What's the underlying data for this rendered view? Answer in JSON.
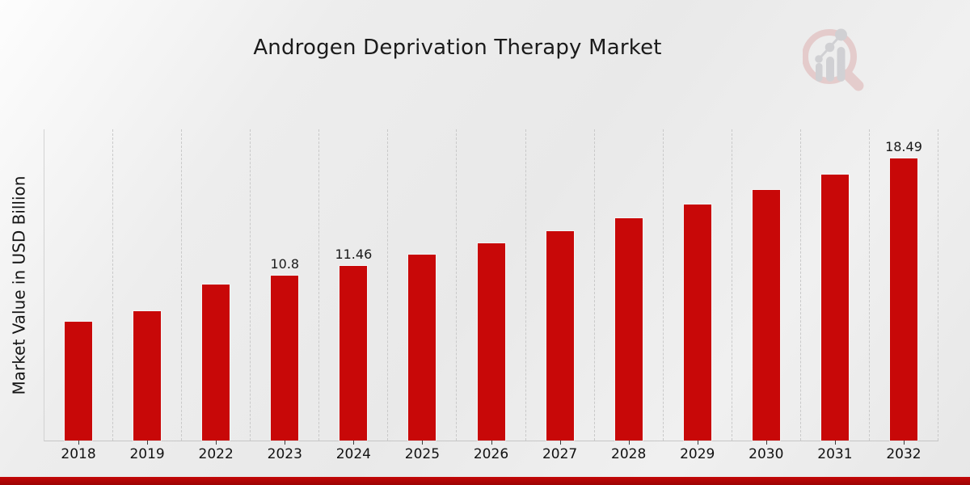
{
  "chart_data": {
    "type": "bar",
    "title": "Androgen Deprivation Therapy Market",
    "xlabel": "",
    "ylabel": "Market Value in USD Billion",
    "categories": [
      "2018",
      "2019",
      "2022",
      "2023",
      "2024",
      "2025",
      "2026",
      "2027",
      "2028",
      "2029",
      "2030",
      "2031",
      "2032"
    ],
    "values": [
      7.8,
      8.5,
      10.2,
      10.8,
      11.46,
      12.17,
      12.92,
      13.71,
      14.56,
      15.45,
      16.4,
      17.41,
      18.49
    ],
    "bar_labels": [
      "",
      "",
      "",
      "10.8",
      "11.46",
      "",
      "",
      "",
      "",
      "",
      "",
      "",
      "18.49"
    ],
    "ylim": [
      0,
      20.4
    ],
    "grid": "vertical dashed gridlines",
    "legend_position": "none",
    "bar_color": "#c80808"
  },
  "footer": {
    "accent_color": "#b00606"
  },
  "watermark": {
    "name": "market-research-future-logo",
    "ring_color": "#dcabab",
    "bars_color": "#b5b5bb"
  }
}
